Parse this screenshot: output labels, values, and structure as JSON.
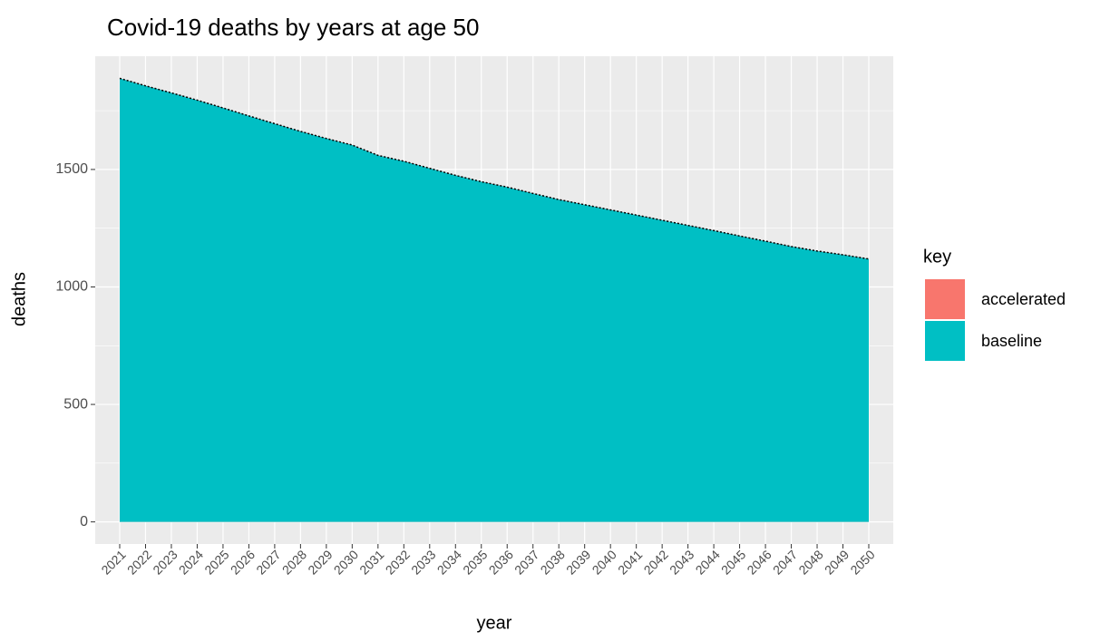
{
  "chart_data": {
    "type": "area",
    "title": "Covid-19 deaths by years at age 50",
    "x_label": "year",
    "y_label": "deaths",
    "categories": [
      "2021",
      "2022",
      "2023",
      "2024",
      "2025",
      "2026",
      "2027",
      "2028",
      "2029",
      "2030",
      "2031",
      "2032",
      "2033",
      "2034",
      "2035",
      "2036",
      "2037",
      "2038",
      "2039",
      "2040",
      "2041",
      "2042",
      "2043",
      "2044",
      "2045",
      "2046",
      "2047",
      "2048",
      "2049",
      "2050"
    ],
    "series": [
      {
        "name": "accelerated",
        "color": "#F8766D",
        "values": [
          1888,
          1856,
          1826,
          1795,
          1762,
          1728,
          1695,
          1662,
          1632,
          1604,
          1560,
          1535,
          1505,
          1475,
          1448,
          1425,
          1398,
          1372,
          1350,
          1328,
          1306,
          1284,
          1262,
          1240,
          1217,
          1195,
          1172,
          1153,
          1137,
          1119
        ]
      },
      {
        "name": "baseline",
        "color": "#00BFC4",
        "values": [
          1888,
          1856,
          1826,
          1795,
          1762,
          1728,
          1695,
          1662,
          1632,
          1604,
          1560,
          1535,
          1505,
          1475,
          1448,
          1425,
          1398,
          1372,
          1350,
          1328,
          1306,
          1284,
          1262,
          1240,
          1217,
          1195,
          1172,
          1153,
          1137,
          1119
        ]
      }
    ],
    "legend_title": "key",
    "ylim": [
      -94,
      1982
    ],
    "yticks": [
      0,
      500,
      1000,
      1500
    ],
    "grid": true
  }
}
